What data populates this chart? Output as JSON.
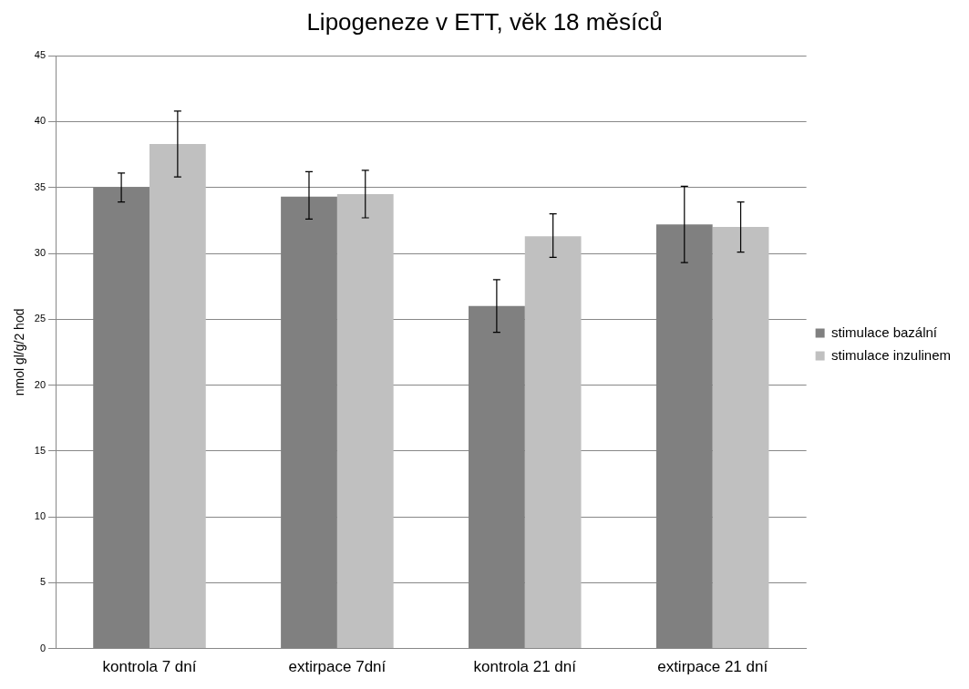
{
  "chart_data": {
    "type": "bar",
    "title": "Lipogeneze v ETT, věk 18 měsíců",
    "ylabel": "nmol gl/g/2 hod",
    "categories": [
      "kontrola 7 dní",
      "extirpace 7dní",
      "kontrola 21 dní",
      "extirpace 21 dní"
    ],
    "series": [
      {
        "name": "stimulace bazální",
        "color": "#808080",
        "values": [
          35.0,
          34.3,
          26.0,
          32.2
        ],
        "errors": [
          [
            33.9,
            36.1
          ],
          [
            32.6,
            36.2
          ],
          [
            24.0,
            28.0
          ],
          [
            29.3,
            35.1
          ]
        ]
      },
      {
        "name": "stimulace inzulinem",
        "color": "#c0c0c0",
        "values": [
          38.3,
          34.5,
          31.3,
          32.0
        ],
        "errors": [
          [
            35.8,
            40.8
          ],
          [
            32.7,
            36.3
          ],
          [
            29.7,
            33.0
          ],
          [
            30.1,
            33.9
          ]
        ]
      }
    ],
    "ylim": [
      0,
      45
    ],
    "yticks": [
      0,
      5,
      10,
      15,
      20,
      25,
      30,
      35,
      40,
      45
    ],
    "grid": "y",
    "legend": "right"
  }
}
